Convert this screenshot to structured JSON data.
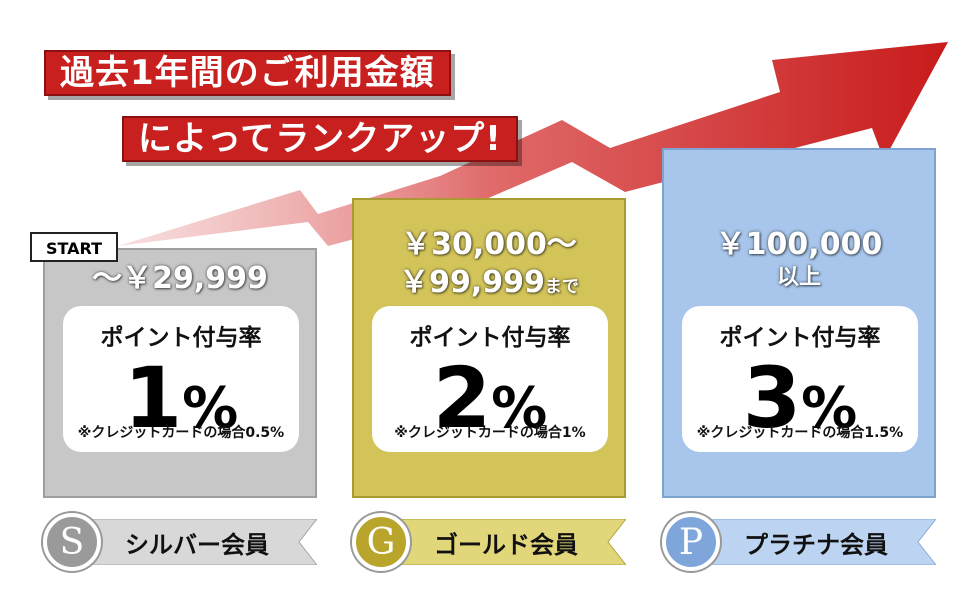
{
  "headline": {
    "line1": "過去1年間のご利用金額",
    "line2": "によってランクアップ!"
  },
  "start_label": "START",
  "tiers": [
    {
      "price_main": "〜￥29,999",
      "price_suffix": "",
      "card_title": "ポイント付与率",
      "rate_number": "1",
      "rate_unit": "%",
      "note": "※クレジットカードの場合0.5%",
      "badge_letter": "S",
      "badge_label": "シルバー会員",
      "color": "#c7c7c7",
      "badge_color": "#9a9a9a",
      "ribbon_color": "#d8d8d8"
    },
    {
      "price_main": "￥30,000〜",
      "price_line2": "￥99,999",
      "price_suffix": "まで",
      "card_title": "ポイント付与率",
      "rate_number": "2",
      "rate_unit": "%",
      "note": "※クレジットカードの場合1%",
      "badge_letter": "G",
      "badge_label": "ゴールド会員",
      "color": "#d3c45a",
      "badge_color": "#b9a52c",
      "ribbon_color": "#e2d67a"
    },
    {
      "price_main": "￥100,000",
      "price_suffix": "以上",
      "card_title": "ポイント付与率",
      "rate_number": "3",
      "rate_unit": "%",
      "note": "※クレジットカードの場合1.5%",
      "badge_letter": "P",
      "badge_label": "プラチナ会員",
      "color": "#a8c6ec",
      "badge_color": "#7fa6db",
      "ribbon_color": "#bcd3f1"
    }
  ]
}
